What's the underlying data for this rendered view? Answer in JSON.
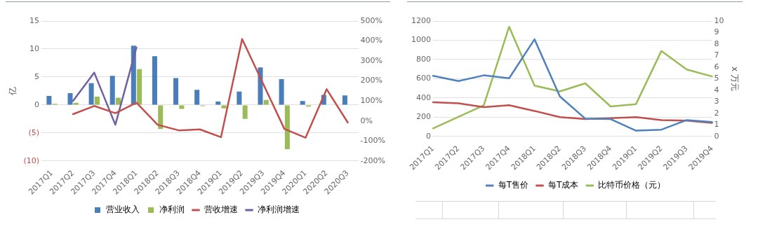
{
  "chart_data": [
    {
      "type": "bar",
      "ylabel": "亿",
      "categories": [
        "2017Q1",
        "2017Q2",
        "2017Q3",
        "2017Q4",
        "2018Q1",
        "2018Q2",
        "2018Q3",
        "2018Q4",
        "2019Q1",
        "2019Q2",
        "2019Q3",
        "2019Q4",
        "2020Q1",
        "2020Q2",
        "2020Q3"
      ],
      "series": [
        {
          "name": "营业收入",
          "type": "bar",
          "color": "#4a7ebb",
          "values": [
            1.6,
            2.1,
            3.9,
            5.2,
            10.6,
            8.7,
            4.8,
            2.7,
            0.6,
            2.4,
            6.7,
            4.6,
            0.7,
            1.8,
            1.7
          ]
        },
        {
          "name": "净利润",
          "type": "bar",
          "color": "#9bbb59",
          "values": [
            0.2,
            0.4,
            1.5,
            1.3,
            6.4,
            -4.3,
            -0.7,
            -0.2,
            -0.6,
            -2.5,
            0.9,
            -7.9,
            -0.3,
            null,
            null
          ]
        },
        {
          "name": "营收增速",
          "type": "line",
          "axis": "y2",
          "color": "#c0504d",
          "values": [
            null,
            34,
            75,
            39,
            91,
            -19,
            -47,
            -42,
            -81,
            410,
            185,
            -40,
            -84,
            159,
            -8
          ]
        },
        {
          "name": "净利润增速",
          "type": "line",
          "axis": "y2",
          "color": "#7060a0",
          "values": [
            null,
            101,
            242,
            -19,
            368,
            null,
            null,
            null,
            null,
            null,
            null,
            null,
            null,
            null,
            null
          ]
        }
      ],
      "ylim": [
        -10,
        15
      ],
      "yticks": [
        {
          "value": -10,
          "label": "(10)"
        },
        {
          "value": -5,
          "label": "(5)"
        },
        0,
        5,
        10,
        15
      ],
      "y2lim": [
        -200,
        500
      ],
      "y2ticks": [
        {
          "value": -200,
          "label": "-200%"
        },
        {
          "value": -100,
          "label": "-100%"
        },
        {
          "value": 0,
          "label": "0%"
        },
        {
          "value": 100,
          "label": "100%"
        },
        {
          "value": 200,
          "label": "200%"
        },
        {
          "value": 300,
          "label": "300%"
        },
        {
          "value": 400,
          "label": "400%"
        },
        {
          "value": 500,
          "label": "500%"
        }
      ],
      "grid": "y",
      "legend": "bottom",
      "marker": "none"
    },
    {
      "type": "line",
      "y2label": "x 万元",
      "categories": [
        "2017Q1",
        "2017Q2",
        "2017Q3",
        "2017Q4",
        "2018Q1",
        "2018Q2",
        "2018Q3",
        "2018Q4",
        "2019Q1",
        "2019Q2",
        "2019Q3",
        "2019Q4"
      ],
      "series": [
        {
          "name": "每T售价",
          "color": "#4f81bd",
          "values": [
            630,
            575,
            635,
            605,
            1010,
            415,
            185,
            180,
            60,
            70,
            170,
            150
          ]
        },
        {
          "name": "每T成本",
          "color": "#c0504d",
          "values": [
            355,
            345,
            305,
            325,
            265,
            200,
            180,
            190,
            200,
            170,
            165,
            140
          ]
        },
        {
          "name": "比特币价格（元）",
          "axis": "y2",
          "color": "#9bbb59",
          "values": [
            0.7,
            1.7,
            2.7,
            9.5,
            4.4,
            3.9,
            4.6,
            2.6,
            2.8,
            7.4,
            5.8,
            5.2
          ]
        }
      ],
      "ylim": [
        0,
        1200
      ],
      "yticks": [
        0,
        200,
        400,
        600,
        800,
        1000,
        1200
      ],
      "y2lim": [
        0,
        10
      ],
      "y2ticks": [
        0,
        1,
        2,
        3,
        4,
        5,
        6,
        7,
        8,
        9,
        10
      ],
      "grid": "y",
      "legend": "bottom",
      "marker": "none"
    }
  ]
}
